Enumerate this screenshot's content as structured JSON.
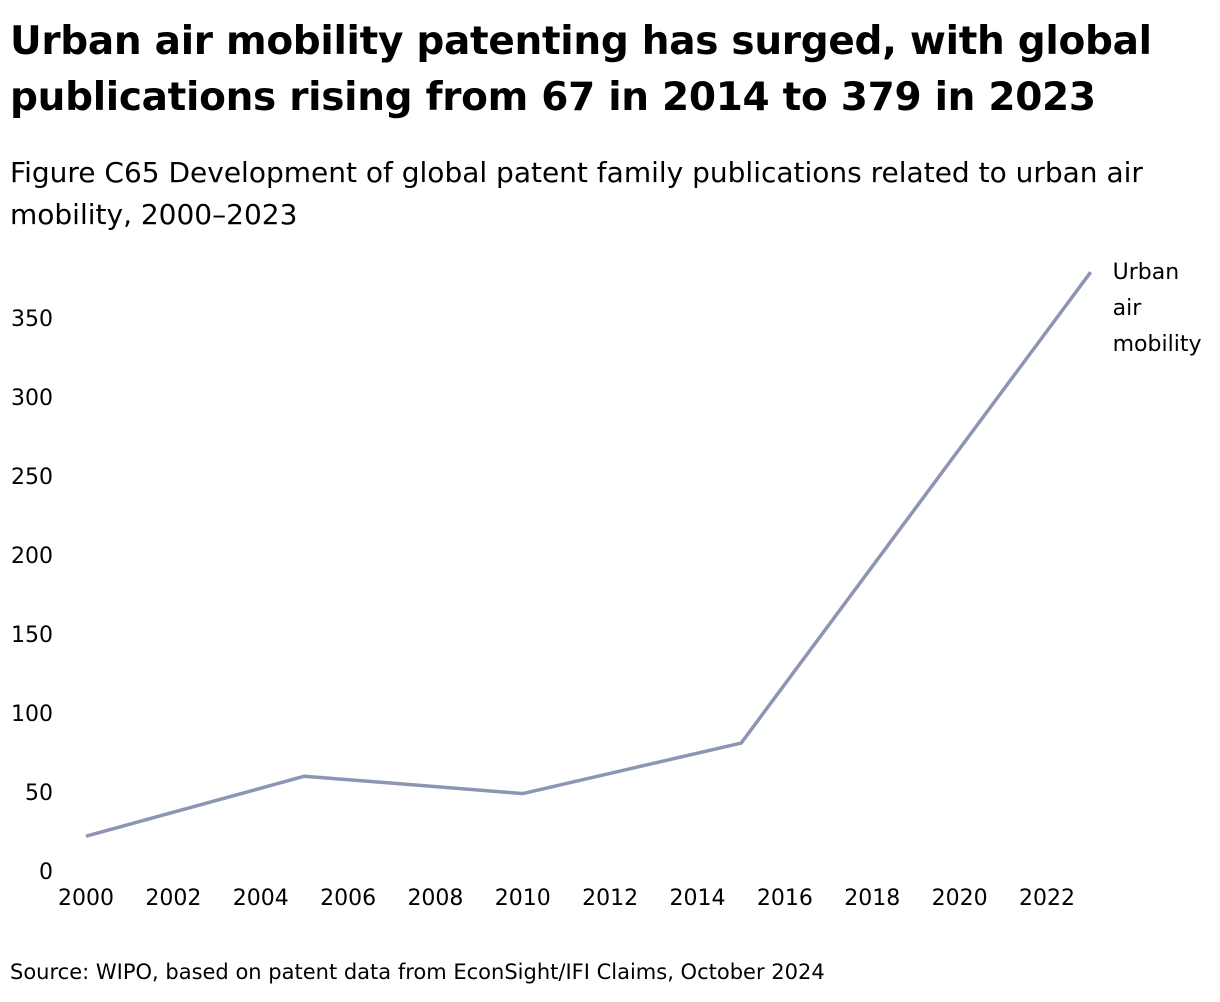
{
  "chart_data": {
    "type": "line",
    "title": "Urban air mobility patenting has surged, with global publications rising from 67 in 2014 to 379 in 2023",
    "subtitle": "Figure C65 Development of global patent family publications related to urban air mobility, 2000–2023",
    "source": "Source: WIPO, based on patent data from EconSight/IFI Claims, October 2024",
    "xlabel": "",
    "ylabel": "",
    "xlim": [
      2000,
      2023
    ],
    "ylim": [
      0,
      380
    ],
    "x_ticks": [
      2000,
      2002,
      2004,
      2006,
      2008,
      2010,
      2012,
      2014,
      2016,
      2018,
      2020,
      2022
    ],
    "y_ticks": [
      0,
      50,
      100,
      150,
      200,
      250,
      300,
      350
    ],
    "grid": false,
    "series": [
      {
        "name": "Urban air mobility",
        "label_lines": [
          "Urban",
          "air",
          "mobility"
        ],
        "color": "#8c96b2",
        "x": [
          2000,
          2005,
          2010,
          2015,
          2023
        ],
        "y": [
          22,
          60,
          49,
          81,
          379
        ]
      }
    ]
  }
}
